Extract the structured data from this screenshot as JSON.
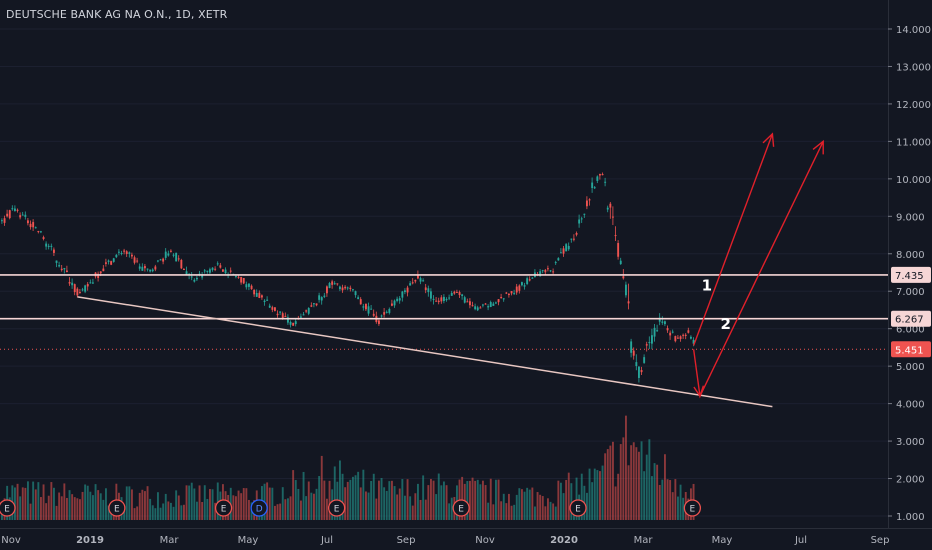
{
  "title": "DEUTSCHE BANK AG NA O.N., 1D, XETR",
  "colors": {
    "background": "#131722",
    "up": "#26a69a",
    "down": "#ef5350",
    "level_line": "#f6d6d6",
    "trend_line": "#e8c7c2",
    "arrow": "#e0202a",
    "price_label": "#ef5350",
    "grid": "#1c2030"
  },
  "chart_data": {
    "type": "candlestick",
    "symbol": "DEUTSCHE BANK AG NA O.N.",
    "interval": "1D",
    "exchange": "XETR",
    "y_axis": {
      "ticks": [
        1.0,
        2.0,
        3.0,
        4.0,
        5.0,
        6.0,
        7.0,
        8.0,
        9.0,
        10.0,
        11.0,
        12.0,
        13.0,
        14.0
      ],
      "tick_labels": [
        "1.000",
        "2.000",
        "3.000",
        "4.000",
        "5.000",
        "6.000",
        "7.000",
        "8.000",
        "9.000",
        "10.000",
        "11.000",
        "12.000",
        "13.000",
        "14.000"
      ],
      "range": [
        0.7,
        14.5
      ]
    },
    "x_axis": {
      "labels": [
        "Nov",
        "2019",
        "Mar",
        "May",
        "Jul",
        "Sep",
        "Nov",
        "2020",
        "Mar",
        "May",
        "Jul",
        "Sep"
      ],
      "bold_labels": [
        "2019",
        "2020"
      ],
      "range": [
        "2018-11-01",
        "2020-09-30"
      ]
    },
    "price_path": [
      [
        "2018-10-29",
        8.7
      ],
      [
        "2018-11-12",
        9.2
      ],
      [
        "2018-12-01",
        8.6
      ],
      [
        "2018-12-20",
        7.6
      ],
      [
        "2019-01-02",
        6.9
      ],
      [
        "2019-01-20",
        7.6
      ],
      [
        "2019-02-05",
        8.1
      ],
      [
        "2019-02-25",
        7.5
      ],
      [
        "2019-03-15",
        8.1
      ],
      [
        "2019-04-01",
        7.3
      ],
      [
        "2019-04-20",
        7.7
      ],
      [
        "2019-05-10",
        7.3
      ],
      [
        "2019-06-01",
        6.6
      ],
      [
        "2019-06-20",
        6.1
      ],
      [
        "2019-07-05",
        6.6
      ],
      [
        "2019-07-20",
        7.2
      ],
      [
        "2019-08-05",
        7.0
      ],
      [
        "2019-08-25",
        6.2
      ],
      [
        "2019-09-10",
        6.8
      ],
      [
        "2019-09-25",
        7.4
      ],
      [
        "2019-10-10",
        6.7
      ],
      [
        "2019-10-25",
        7.0
      ],
      [
        "2019-11-10",
        6.5
      ],
      [
        "2019-11-25",
        6.7
      ],
      [
        "2019-12-10",
        7.0
      ],
      [
        "2019-12-25",
        7.4
      ],
      [
        "2020-01-10",
        7.6
      ],
      [
        "2020-01-25",
        8.4
      ],
      [
        "2020-02-10",
        9.8
      ],
      [
        "2020-02-18",
        10.2
      ],
      [
        "2020-02-25",
        8.8
      ],
      [
        "2020-03-05",
        7.5
      ],
      [
        "2020-03-12",
        5.4
      ],
      [
        "2020-03-18",
        4.8
      ],
      [
        "2020-03-25",
        5.6
      ],
      [
        "2020-04-05",
        6.3
      ],
      [
        "2020-04-15",
        5.7
      ],
      [
        "2020-04-25",
        5.9
      ],
      [
        "2020-04-30",
        5.451
      ]
    ],
    "volume_profile": [
      [
        "2018-10-29",
        0.35
      ],
      [
        "2019-02-01",
        0.3
      ],
      [
        "2019-06-01",
        0.32
      ],
      [
        "2019-07-15",
        0.55
      ],
      [
        "2019-09-01",
        0.35
      ],
      [
        "2019-10-15",
        0.4
      ],
      [
        "2020-01-01",
        0.3
      ],
      [
        "2020-02-15",
        0.5
      ],
      [
        "2020-03-01",
        0.85
      ],
      [
        "2020-03-10",
        1.0
      ],
      [
        "2020-03-25",
        0.7
      ],
      [
        "2020-04-30",
        0.4
      ]
    ],
    "horizontal_levels": [
      {
        "value": 7.435,
        "label": "7.435"
      },
      {
        "value": 6.267,
        "label": "6.267"
      }
    ],
    "last_price": {
      "value": 5.451,
      "label": "5.451"
    },
    "trendline": {
      "points": [
        [
          "2019-01-01",
          6.85
        ],
        [
          "2020-07-01",
          3.92
        ]
      ]
    },
    "projections": [
      {
        "label": "1",
        "path": [
          [
            "2020-04-30",
            5.55
          ],
          [
            "2020-07-01",
            11.2
          ]
        ]
      },
      {
        "label": "2",
        "path": [
          [
            "2020-04-30",
            5.45
          ],
          [
            "2020-05-05",
            4.2
          ],
          [
            "2020-08-10",
            11.0
          ]
        ]
      }
    ],
    "earnings_markers": [
      {
        "date": "2018-10-26",
        "label": "E"
      },
      {
        "date": "2019-02-01",
        "label": "E"
      },
      {
        "date": "2019-04-26",
        "label": "E"
      },
      {
        "date": "2019-05-24",
        "label": "D"
      },
      {
        "date": "2019-07-24",
        "label": "E"
      },
      {
        "date": "2019-10-30",
        "label": "E"
      },
      {
        "date": "2020-01-30",
        "label": "E"
      },
      {
        "date": "2020-04-29",
        "label": "E"
      }
    ]
  }
}
